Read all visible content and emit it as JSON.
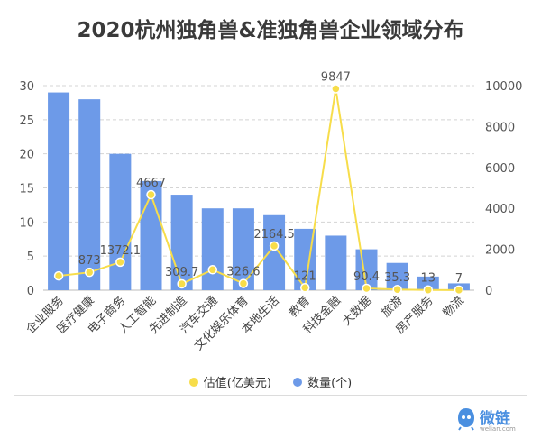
{
  "title": "2020杭州独角兽&准独角兽企业领域分布",
  "legend": {
    "valuation_label": "估值(亿美元)",
    "count_label": "数量(个)"
  },
  "colors": {
    "bar": "#6d9ae8",
    "line": "#f7dd4a",
    "grid": "#d4d4d4",
    "axis_text": "#555555"
  },
  "logo": {
    "name": "微链",
    "sub": "welian.com"
  },
  "chart_data": {
    "type": "bar+line",
    "title": "2020杭州独角兽&准独角兽企业领域分布",
    "categories": [
      "企业服务",
      "医疗健康",
      "电子商务",
      "人工智能",
      "先进制造",
      "汽车交通",
      "文化娱乐体育",
      "本地生活",
      "教育",
      "科技金融",
      "大数据",
      "旅游",
      "房产服务",
      "物流"
    ],
    "series": [
      {
        "name": "数量(个)",
        "type": "bar",
        "axis": "left",
        "values": [
          29,
          28,
          20,
          16,
          14,
          12,
          12,
          11,
          9,
          8,
          6,
          4,
          2,
          1
        ]
      },
      {
        "name": "估值(亿美元)",
        "type": "line",
        "axis": "right",
        "values": [
          700,
          873,
          1372.1,
          4667,
          309.7,
          1000,
          326.6,
          2164.5,
          121,
          9847,
          90.4,
          35.3,
          13,
          7
        ],
        "labels": [
          "",
          "873",
          "1372.1",
          "4667",
          "309.7",
          "",
          "326.6",
          "2164.5",
          "121",
          "9847",
          "90.4",
          "35.3",
          "13",
          "7"
        ]
      }
    ],
    "left_axis": {
      "min": 0,
      "max": 30,
      "ticks": [
        0,
        5,
        10,
        15,
        20,
        25,
        30
      ]
    },
    "right_axis": {
      "min": 0,
      "max": 10000,
      "ticks": [
        0,
        2000,
        4000,
        6000,
        8000,
        10000
      ]
    },
    "grid": true,
    "legend_position": "bottom"
  }
}
